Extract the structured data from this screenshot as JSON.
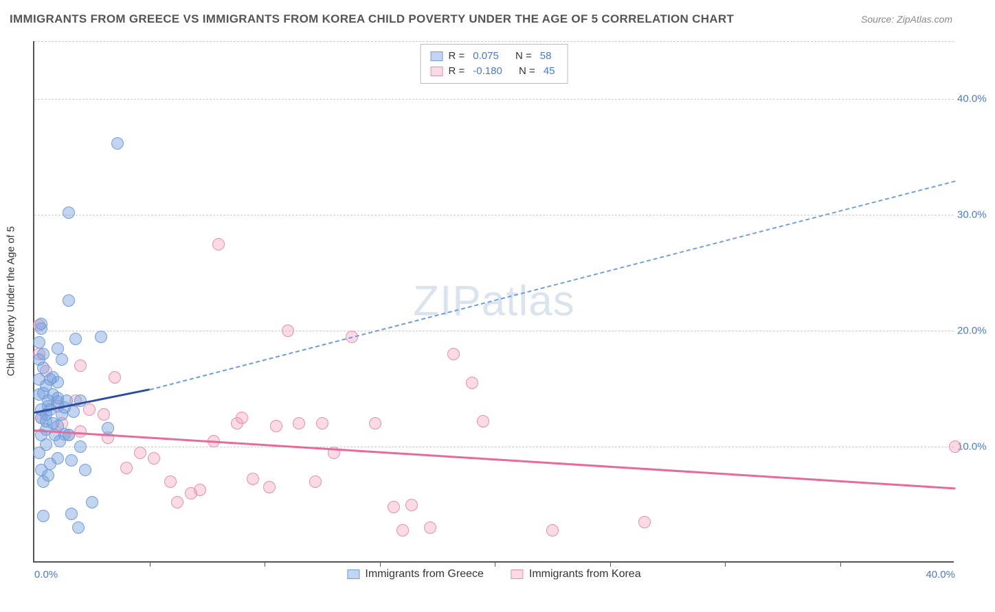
{
  "title": "IMMIGRANTS FROM GREECE VS IMMIGRANTS FROM KOREA CHILD POVERTY UNDER THE AGE OF 5 CORRELATION CHART",
  "source": "Source: ZipAtlas.com",
  "watermark": "ZIPatlas",
  "y_axis_title": "Child Poverty Under the Age of 5",
  "background_color": "#ffffff",
  "grid_color": "#cccccc",
  "axis_color": "#555555",
  "label_color": "#4a7ac7",
  "xlim": [
    0,
    40
  ],
  "ylim": [
    0,
    45
  ],
  "y_ticks": [
    10,
    20,
    30,
    40
  ],
  "x_ticks": [
    0,
    40
  ],
  "x_tick_labels": [
    "0.0%",
    "40.0%"
  ],
  "y_tick_labels": [
    "10.0%",
    "20.0%",
    "30.0%",
    "40.0%"
  ],
  "x_tick_minor": [
    5,
    10,
    15,
    20,
    25,
    30,
    35
  ],
  "series": {
    "greece": {
      "label": "Immigrants from Greece",
      "fill": "rgba(120,160,220,0.45)",
      "stroke": "#6f9edb",
      "trend_color": "#2a4fa0",
      "dash_color": "#6f9edb",
      "R": "0.075",
      "N": "58",
      "trend_start": [
        0,
        13.0
      ],
      "trend_solid_end": [
        5,
        15.0
      ],
      "trend_dash_end": [
        40,
        33.0
      ],
      "points": [
        [
          0.3,
          20.6
        ],
        [
          0.3,
          20.2
        ],
        [
          0.5,
          12.2
        ],
        [
          1.5,
          30.2
        ],
        [
          3.6,
          36.2
        ],
        [
          0.2,
          19.0
        ],
        [
          0.8,
          14.5
        ],
        [
          1.0,
          14.2
        ],
        [
          0.5,
          11.5
        ],
        [
          0.8,
          16.0
        ],
        [
          1.2,
          12.8
        ],
        [
          2.0,
          14.0
        ],
        [
          1.5,
          22.6
        ],
        [
          0.4,
          7.0
        ],
        [
          0.7,
          8.5
        ],
        [
          1.9,
          3.0
        ],
        [
          1.6,
          4.2
        ],
        [
          2.5,
          5.2
        ],
        [
          2.2,
          8.0
        ],
        [
          0.4,
          4.0
        ],
        [
          0.3,
          13.2
        ],
        [
          0.6,
          13.5
        ],
        [
          1.0,
          13.9
        ],
        [
          1.4,
          14.0
        ],
        [
          0.5,
          15.3
        ],
        [
          0.7,
          15.8
        ],
        [
          0.9,
          11.0
        ],
        [
          1.3,
          11.1
        ],
        [
          0.5,
          10.2
        ],
        [
          0.2,
          9.5
        ],
        [
          0.4,
          18.0
        ],
        [
          1.0,
          18.5
        ],
        [
          1.2,
          17.5
        ],
        [
          1.8,
          19.3
        ],
        [
          2.9,
          19.5
        ],
        [
          0.6,
          7.5
        ],
        [
          1.0,
          9.0
        ],
        [
          1.6,
          8.8
        ],
        [
          1.0,
          11.8
        ],
        [
          0.3,
          11.0
        ],
        [
          3.2,
          11.6
        ],
        [
          0.4,
          14.6
        ],
        [
          1.0,
          15.6
        ],
        [
          0.6,
          14.0
        ],
        [
          0.3,
          8.0
        ],
        [
          0.2,
          14.5
        ],
        [
          0.4,
          16.8
        ],
        [
          0.2,
          17.5
        ],
        [
          0.5,
          12.8
        ],
        [
          1.1,
          10.5
        ],
        [
          0.7,
          13.2
        ],
        [
          1.3,
          13.4
        ],
        [
          1.7,
          13.0
        ],
        [
          0.8,
          12.0
        ],
        [
          0.3,
          12.5
        ],
        [
          1.5,
          11.0
        ],
        [
          2.0,
          10.0
        ],
        [
          0.2,
          15.8
        ]
      ]
    },
    "korea": {
      "label": "Immigrants from Korea",
      "fill": "rgba(240,150,180,0.35)",
      "stroke": "#e88fb0",
      "trend_color": "#e86a9a",
      "R": "-0.180",
      "N": "45",
      "trend_start": [
        0,
        11.5
      ],
      "trend_solid_end": [
        40,
        6.5
      ],
      "points": [
        [
          0.2,
          20.5
        ],
        [
          0.3,
          12.5
        ],
        [
          1.2,
          12.0
        ],
        [
          1.0,
          13.5
        ],
        [
          1.8,
          14.0
        ],
        [
          2.4,
          13.2
        ],
        [
          2.0,
          11.3
        ],
        [
          3.5,
          16.0
        ],
        [
          3.0,
          12.8
        ],
        [
          4.6,
          9.5
        ],
        [
          5.2,
          9.0
        ],
        [
          5.9,
          7.0
        ],
        [
          6.8,
          6.0
        ],
        [
          6.2,
          5.2
        ],
        [
          7.8,
          10.5
        ],
        [
          7.2,
          6.3
        ],
        [
          8.0,
          27.5
        ],
        [
          8.8,
          12.0
        ],
        [
          9.5,
          7.2
        ],
        [
          10.2,
          6.5
        ],
        [
          11.0,
          20.0
        ],
        [
          11.5,
          12.0
        ],
        [
          12.2,
          7.0
        ],
        [
          13.0,
          9.5
        ],
        [
          13.8,
          19.5
        ],
        [
          14.8,
          12.0
        ],
        [
          15.6,
          4.8
        ],
        [
          16.4,
          5.0
        ],
        [
          16.0,
          2.8
        ],
        [
          17.2,
          3.0
        ],
        [
          18.2,
          18.0
        ],
        [
          19.0,
          15.5
        ],
        [
          19.5,
          12.2
        ],
        [
          22.5,
          2.8
        ],
        [
          26.5,
          3.5
        ],
        [
          40.0,
          10.0
        ],
        [
          4.0,
          8.2
        ],
        [
          3.2,
          10.8
        ],
        [
          2.0,
          17.0
        ],
        [
          0.5,
          16.5
        ],
        [
          0.2,
          18.0
        ],
        [
          1.5,
          11.0
        ],
        [
          10.5,
          11.8
        ],
        [
          9.0,
          12.5
        ],
        [
          12.5,
          12.0
        ]
      ]
    }
  },
  "legend": {
    "r_label": "R =",
    "n_label": "N ="
  }
}
